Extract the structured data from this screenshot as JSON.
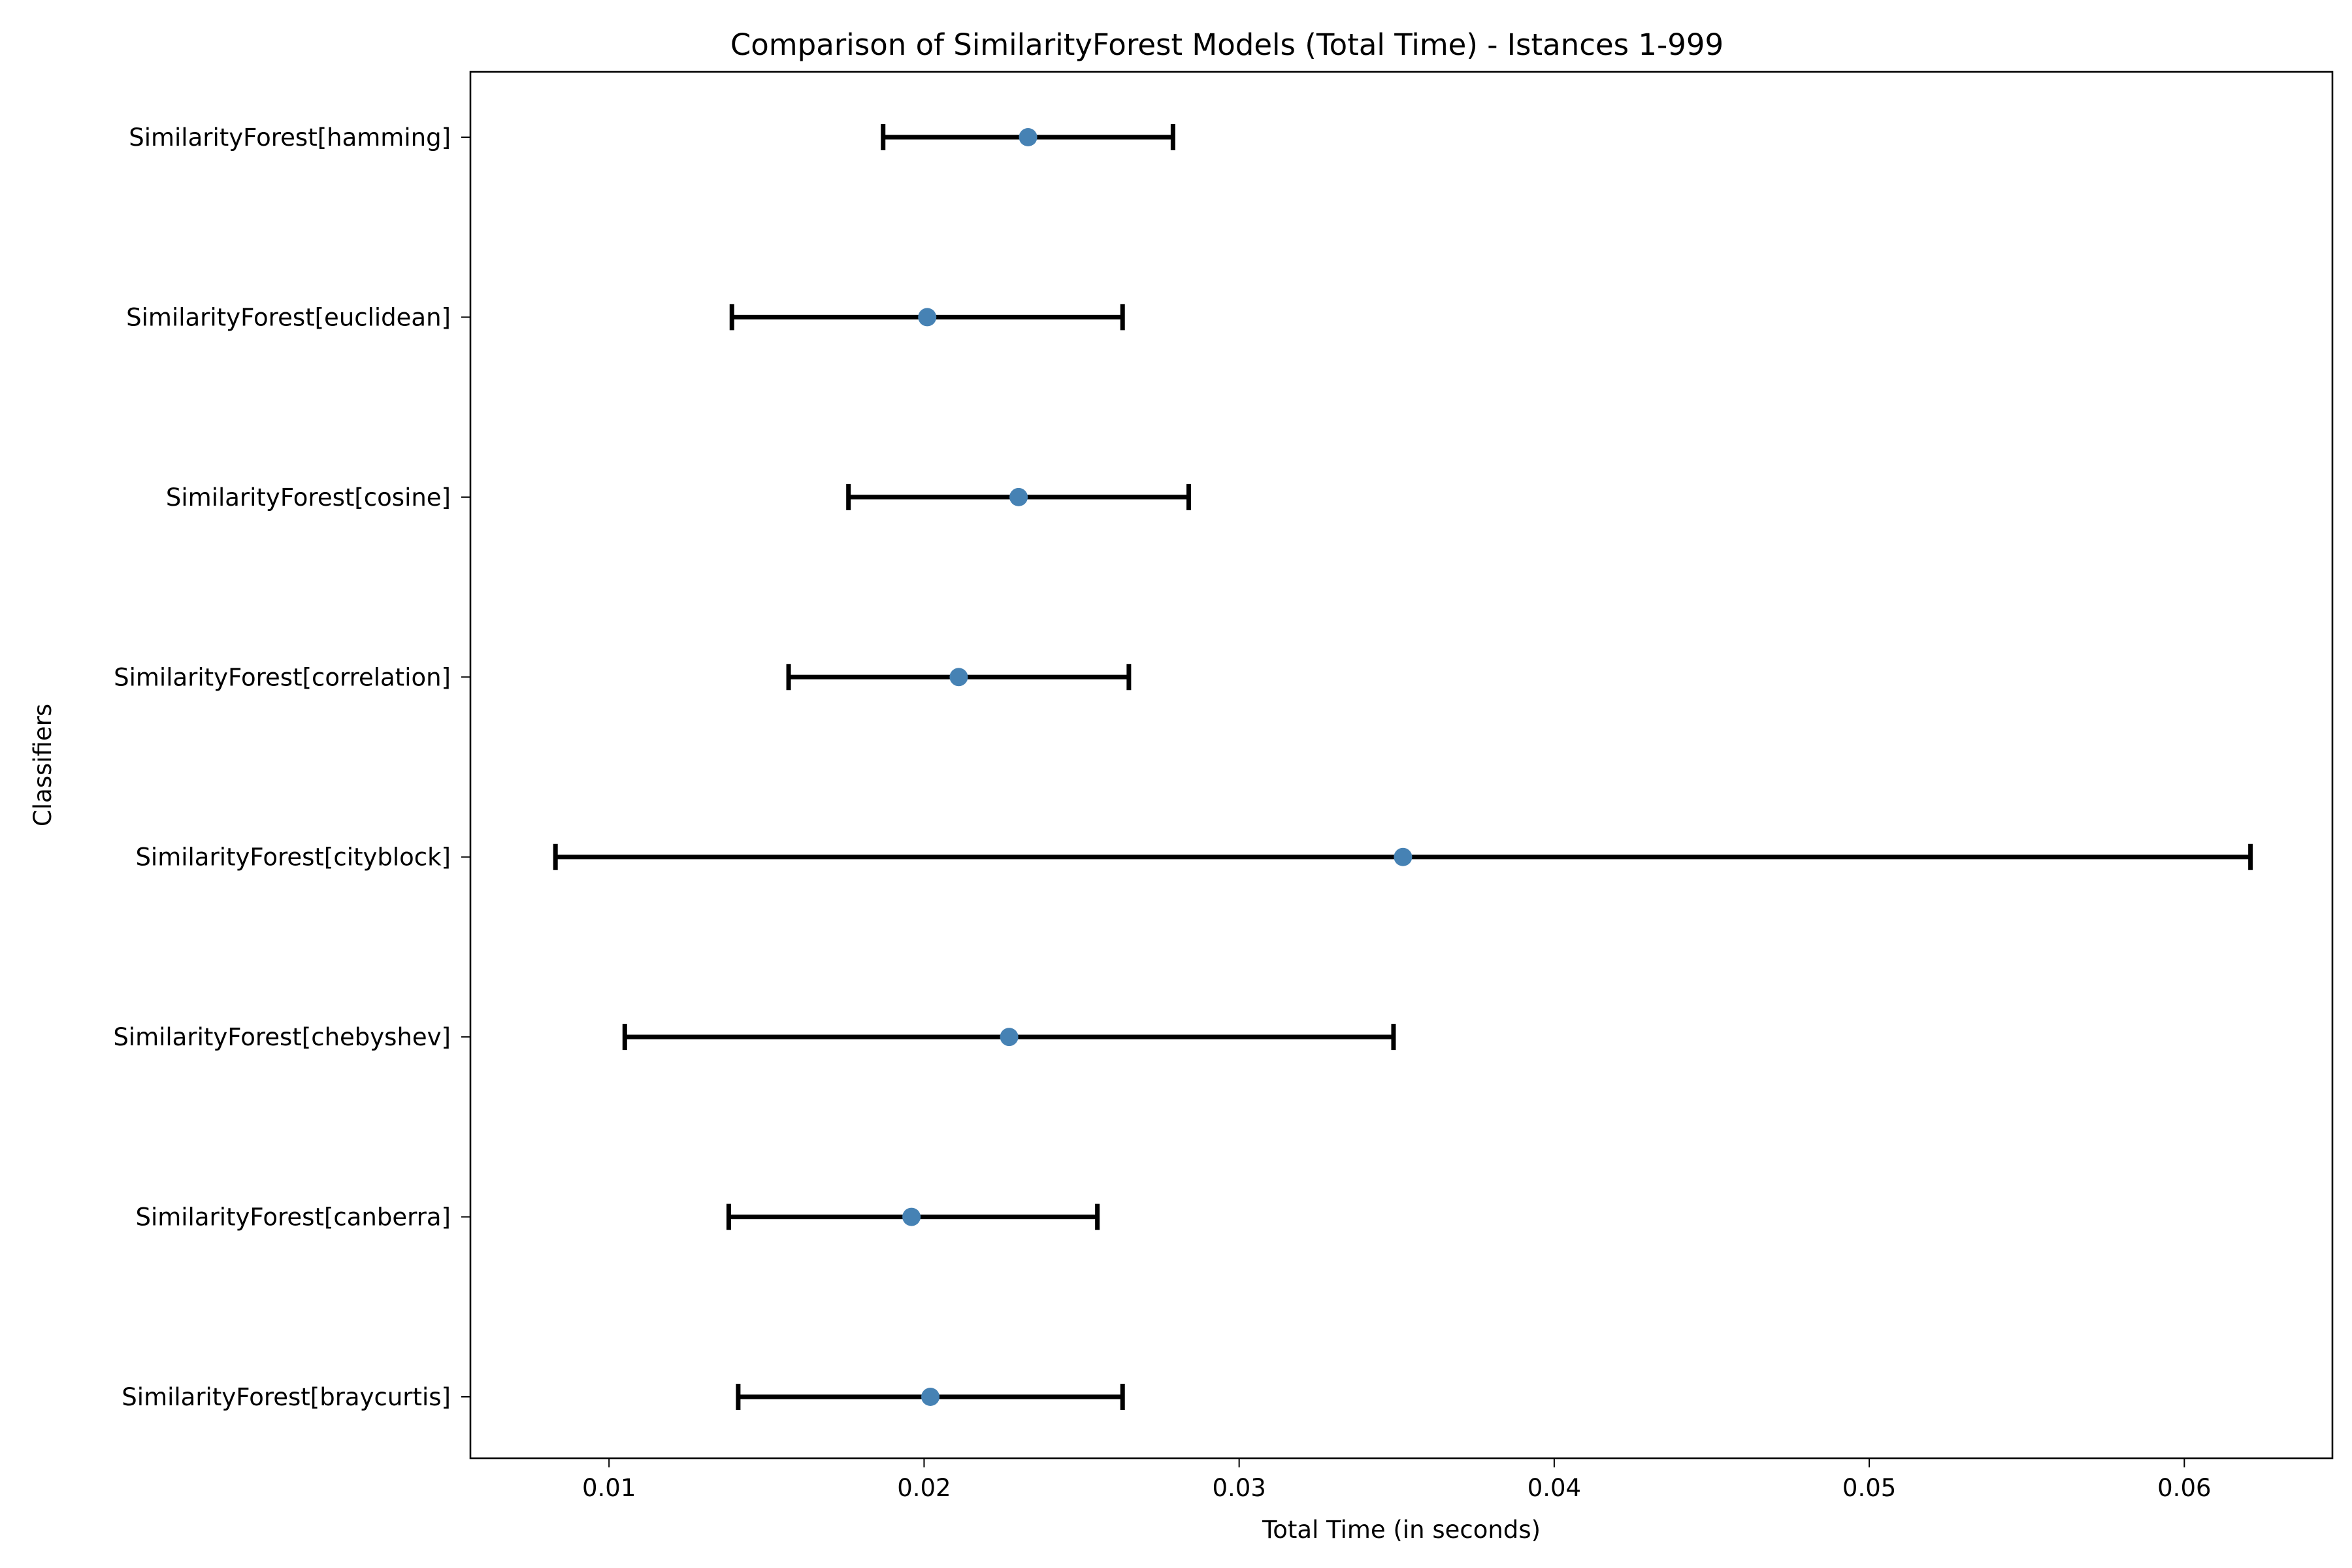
{
  "chart_data": {
    "type": "scatter",
    "title": "Comparison of SimilarityForest Models (Total Time) - Istances 1-999",
    "xlabel": "Total Time (in seconds)",
    "ylabel": "Classifiers",
    "xlim": [
      0.0056,
      0.0647
    ],
    "xticks": [
      0.01,
      0.02,
      0.03,
      0.04,
      0.05,
      0.06
    ],
    "xtick_labels": [
      "0.01",
      "0.02",
      "0.03",
      "0.04",
      "0.05",
      "0.06"
    ],
    "grid": false,
    "point_color": "#4682b4",
    "errorbar_color": "#000000",
    "categories": [
      "SimilarityForest[braycurtis]",
      "SimilarityForest[canberra]",
      "SimilarityForest[chebyshev]",
      "SimilarityForest[cityblock]",
      "SimilarityForest[correlation]",
      "SimilarityForest[cosine]",
      "SimilarityForest[euclidean]",
      "SimilarityForest[hamming]"
    ],
    "means": [
      0.0202,
      0.0196,
      0.0227,
      0.0352,
      0.0211,
      0.023,
      0.0201,
      0.0233
    ],
    "lower": [
      0.0141,
      0.0138,
      0.0105,
      0.0083,
      0.0157,
      0.0176,
      0.0139,
      0.0187
    ],
    "upper": [
      0.0263,
      0.0255,
      0.0349,
      0.0621,
      0.0265,
      0.0284,
      0.0263,
      0.0279
    ]
  }
}
